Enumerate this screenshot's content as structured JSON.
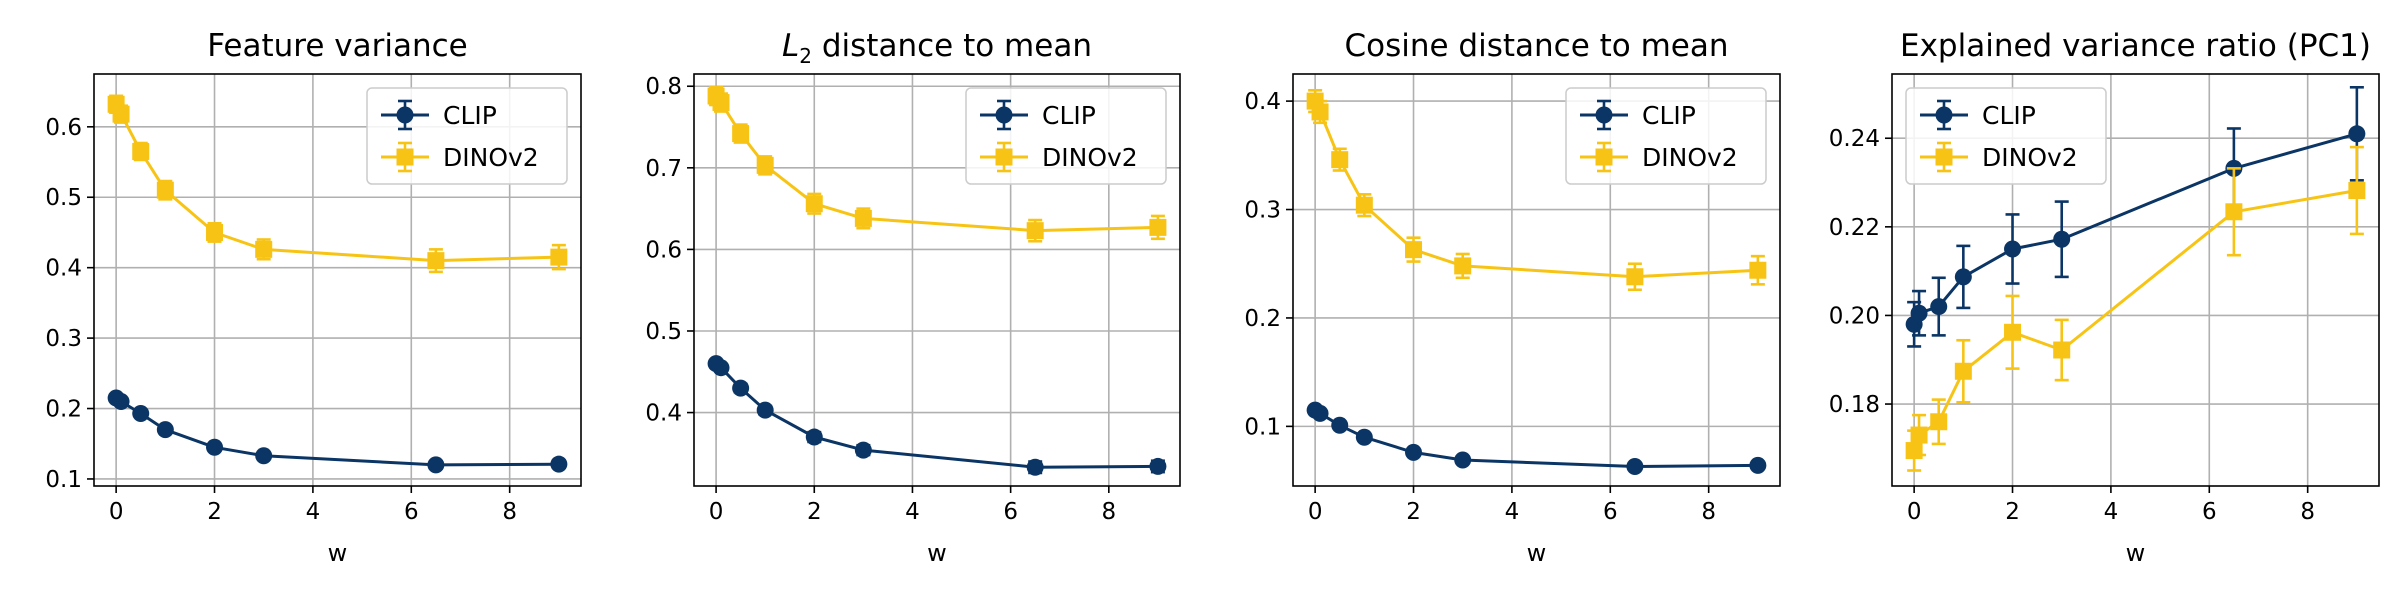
{
  "figure": {
    "colors": {
      "CLIP": "#0b3565",
      "DINOv2": "#f7c415",
      "grid": "#b0b0b0",
      "frame": "#000000"
    }
  },
  "chart_data": [
    {
      "type": "line",
      "title": "Feature variance",
      "title_math": null,
      "xlabel": "w",
      "ylabel": "",
      "xlim": [
        -0.45,
        9.45
      ],
      "ylim": [
        0.09,
        0.675
      ],
      "xticks": [
        0,
        2,
        4,
        6,
        8
      ],
      "yticks": [
        0.1,
        0.2,
        0.3,
        0.4,
        0.5,
        0.6
      ],
      "ytick_labels": [
        "0.1",
        "0.2",
        "0.3",
        "0.4",
        "0.5",
        "0.6"
      ],
      "grid": true,
      "legend_position": "top-right",
      "x": [
        0,
        0.1,
        0.5,
        1,
        2,
        3,
        6.5,
        9
      ],
      "series": [
        {
          "name": "CLIP",
          "marker": "circle",
          "values": [
            0.215,
            0.21,
            0.193,
            0.17,
            0.145,
            0.133,
            0.12,
            0.121
          ],
          "errors": [
            0.003,
            0.003,
            0.004,
            0.004,
            0.004,
            0.004,
            0.005,
            0.005
          ]
        },
        {
          "name": "DINOv2",
          "marker": "square",
          "values": [
            0.632,
            0.618,
            0.565,
            0.51,
            0.45,
            0.426,
            0.41,
            0.415
          ],
          "errors": [
            0.012,
            0.012,
            0.012,
            0.013,
            0.013,
            0.014,
            0.016,
            0.017
          ]
        }
      ]
    },
    {
      "type": "line",
      "title": " distance to mean",
      "title_math": {
        "base": "L",
        "sub": "2"
      },
      "xlabel": "w",
      "ylabel": "",
      "xlim": [
        -0.45,
        9.45
      ],
      "ylim": [
        0.31,
        0.815
      ],
      "xticks": [
        0,
        2,
        4,
        6,
        8
      ],
      "yticks": [
        0.4,
        0.5,
        0.6,
        0.7,
        0.8
      ],
      "ytick_labels": [
        "0.4",
        "0.5",
        "0.6",
        "0.7",
        "0.8"
      ],
      "grid": true,
      "legend_position": "top-right",
      "x": [
        0,
        0.1,
        0.5,
        1,
        2,
        3,
        6.5,
        9
      ],
      "series": [
        {
          "name": "CLIP",
          "marker": "circle",
          "values": [
            0.46,
            0.455,
            0.43,
            0.403,
            0.37,
            0.354,
            0.333,
            0.334
          ],
          "errors": [
            0.004,
            0.004,
            0.005,
            0.005,
            0.006,
            0.006,
            0.007,
            0.007
          ]
        },
        {
          "name": "DINOv2",
          "marker": "square",
          "values": [
            0.788,
            0.78,
            0.742,
            0.703,
            0.656,
            0.638,
            0.623,
            0.627
          ],
          "errors": [
            0.011,
            0.011,
            0.011,
            0.011,
            0.012,
            0.012,
            0.013,
            0.014
          ]
        }
      ]
    },
    {
      "type": "line",
      "title": "Cosine distance to mean",
      "title_math": null,
      "xlabel": "w",
      "ylabel": "",
      "xlim": [
        -0.45,
        9.45
      ],
      "ylim": [
        0.045,
        0.425
      ],
      "xticks": [
        0,
        2,
        4,
        6,
        8
      ],
      "yticks": [
        0.1,
        0.2,
        0.3,
        0.4
      ],
      "ytick_labels": [
        "0.1",
        "0.2",
        "0.3",
        "0.4"
      ],
      "grid": true,
      "legend_position": "top-right",
      "x": [
        0,
        0.1,
        0.5,
        1,
        2,
        3,
        6.5,
        9
      ],
      "series": [
        {
          "name": "CLIP",
          "marker": "circle",
          "values": [
            0.115,
            0.112,
            0.101,
            0.09,
            0.076,
            0.069,
            0.063,
            0.064
          ],
          "errors": [
            0.002,
            0.002,
            0.002,
            0.002,
            0.002,
            0.002,
            0.003,
            0.003
          ]
        },
        {
          "name": "DINOv2",
          "marker": "square",
          "values": [
            0.4,
            0.39,
            0.346,
            0.304,
            0.263,
            0.248,
            0.238,
            0.244
          ],
          "errors": [
            0.01,
            0.01,
            0.01,
            0.01,
            0.011,
            0.011,
            0.012,
            0.013
          ]
        }
      ]
    },
    {
      "type": "line",
      "title": "Explained variance ratio (PC1)",
      "title_math": null,
      "xlabel": "w",
      "ylabel": "",
      "xlim": [
        -0.45,
        9.45
      ],
      "ylim": [
        0.1615,
        0.2545
      ],
      "xticks": [
        0,
        2,
        4,
        6,
        8
      ],
      "yticks": [
        0.18,
        0.2,
        0.22,
        0.24
      ],
      "ytick_labels": [
        "0.18",
        "0.20",
        "0.22",
        "0.24"
      ],
      "grid": true,
      "legend_position": "top-left",
      "x": [
        0,
        0.1,
        0.5,
        1,
        2,
        3,
        6.5,
        9
      ],
      "series": [
        {
          "name": "CLIP",
          "marker": "circle",
          "values": [
            0.198,
            0.2005,
            0.202,
            0.2087,
            0.215,
            0.2172,
            0.2332,
            0.241
          ],
          "errors": [
            0.005,
            0.005,
            0.0065,
            0.007,
            0.0078,
            0.0085,
            0.009,
            0.0105
          ]
        },
        {
          "name": "DINOv2",
          "marker": "square",
          "values": [
            0.1695,
            0.173,
            0.176,
            0.1874,
            0.1962,
            0.1922,
            0.2234,
            0.2282
          ],
          "errors": [
            0.0045,
            0.0045,
            0.005,
            0.007,
            0.0082,
            0.0068,
            0.0098,
            0.0098
          ]
        }
      ]
    }
  ]
}
